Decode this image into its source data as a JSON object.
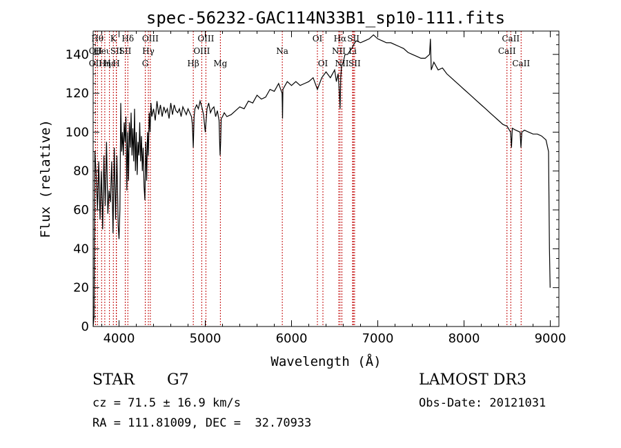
{
  "chart_data": {
    "type": "line",
    "title": "spec-56232-GAC114N33B1_sp10-111.fits",
    "xlabel": "Wavelength (Å)",
    "ylabel": "Flux (relative)",
    "xlim": [
      3700,
      9100
    ],
    "ylim": [
      0,
      152
    ],
    "xticks": [
      4000,
      5000,
      6000,
      7000,
      8000,
      9000
    ],
    "yticks": [
      0,
      20,
      40,
      60,
      80,
      100,
      120,
      140
    ],
    "series": [
      {
        "name": "flux",
        "x": [
          3700,
          3710,
          3720,
          3735,
          3750,
          3765,
          3780,
          3795,
          3810,
          3825,
          3840,
          3855,
          3870,
          3885,
          3900,
          3915,
          3930,
          3945,
          3960,
          3975,
          3990,
          4000,
          4010,
          4020,
          4030,
          4040,
          4050,
          4060,
          4070,
          4080,
          4090,
          4100,
          4110,
          4120,
          4130,
          4140,
          4150,
          4160,
          4170,
          4180,
          4190,
          4200,
          4210,
          4220,
          4230,
          4240,
          4250,
          4260,
          4270,
          4280,
          4290,
          4300,
          4310,
          4320,
          4330,
          4340,
          4350,
          4360,
          4370,
          4380,
          4400,
          4420,
          4440,
          4460,
          4480,
          4500,
          4520,
          4540,
          4560,
          4580,
          4600,
          4620,
          4640,
          4660,
          4680,
          4700,
          4720,
          4740,
          4760,
          4780,
          4800,
          4820,
          4840,
          4850,
          4861,
          4870,
          4880,
          4900,
          4920,
          4940,
          4960,
          4980,
          5000,
          5020,
          5040,
          5060,
          5080,
          5100,
          5120,
          5140,
          5160,
          5167,
          5172,
          5178,
          5185,
          5200,
          5220,
          5250,
          5300,
          5350,
          5400,
          5450,
          5500,
          5550,
          5600,
          5650,
          5700,
          5750,
          5800,
          5850,
          5890,
          5896,
          5900,
          5950,
          6000,
          6050,
          6100,
          6150,
          6200,
          6250,
          6300,
          6350,
          6400,
          6450,
          6500,
          6520,
          6540,
          6555,
          6563,
          6570,
          6580,
          6600,
          6620,
          6650,
          6680,
          6700,
          6720,
          6750,
          6800,
          6850,
          6900,
          6950,
          7000,
          7050,
          7100,
          7150,
          7200,
          7250,
          7300,
          7350,
          7400,
          7450,
          7500,
          7550,
          7600,
          7610,
          7620,
          7650,
          7700,
          7750,
          7800,
          7850,
          7900,
          7950,
          8000,
          8050,
          8100,
          8150,
          8200,
          8250,
          8300,
          8350,
          8400,
          8450,
          8500,
          8540,
          8550,
          8560,
          8600,
          8650,
          8660,
          8670,
          8700,
          8750,
          8800,
          8850,
          8900,
          8950,
          8980,
          8990,
          8998
        ],
        "values": [
          0,
          5,
          90,
          78,
          60,
          85,
          55,
          80,
          50,
          88,
          62,
          95,
          58,
          70,
          64,
          85,
          48,
          92,
          55,
          88,
          52,
          45,
          60,
          115,
          90,
          100,
          88,
          105,
          95,
          108,
          70,
          100,
          75,
          105,
          92,
          110,
          88,
          102,
          85,
          112,
          80,
          100,
          78,
          95,
          88,
          105,
          85,
          98,
          80,
          92,
          72,
          65,
          95,
          75,
          100,
          88,
          110,
          100,
          115,
          108,
          112,
          106,
          116,
          109,
          114,
          108,
          113,
          110,
          112,
          107,
          115,
          109,
          114,
          111,
          110,
          112,
          108,
          113,
          111,
          109,
          112,
          110,
          108,
          104,
          92,
          108,
          112,
          114,
          112,
          116,
          113,
          109,
          100,
          112,
          115,
          110,
          112,
          113,
          108,
          111,
          106,
          94,
          88,
          95,
          107,
          108,
          110,
          108,
          109,
          111,
          113,
          112,
          116,
          115,
          119,
          117,
          118,
          122,
          121,
          125,
          120,
          107,
          122,
          126,
          124,
          126,
          124,
          125,
          126,
          128,
          122,
          128,
          131,
          128,
          132,
          126,
          130,
          120,
          112,
          128,
          134,
          136,
          140,
          140,
          142,
          143,
          145,
          147,
          146,
          147,
          148,
          150,
          148,
          147,
          146,
          146,
          145,
          144,
          143,
          141,
          140,
          139,
          138,
          138,
          140,
          148,
          132,
          136,
          132,
          133,
          130,
          128,
          126,
          124,
          122,
          120,
          118,
          116,
          114,
          112,
          110,
          108,
          106,
          104,
          103,
          100,
          92,
          102,
          101,
          100,
          92,
          100,
          101,
          100,
          99,
          99,
          98,
          96,
          90,
          40,
          20
        ]
      }
    ],
    "line_markers": [
      {
        "wavelength": 3750,
        "row": 0,
        "label": "Hθ"
      },
      {
        "wavelength": 3727,
        "row": 1,
        "label": "OII"
      },
      {
        "wavelength": 3727,
        "row": 2,
        "label": "OII"
      },
      {
        "wavelength": 3798,
        "row": 1,
        "label": "Heι"
      },
      {
        "wavelength": 3835,
        "row": 2,
        "label": "Hη"
      },
      {
        "wavelength": 3889,
        "row": 2,
        "label": "Hε"
      },
      {
        "wavelength": 3934,
        "row": 0,
        "label": "K"
      },
      {
        "wavelength": 3968,
        "row": 2,
        "label": "H"
      },
      {
        "wavelength": 3970,
        "row": 1,
        "label": "SII"
      },
      {
        "wavelength": 4072,
        "row": 1,
        "label": "SII"
      },
      {
        "wavelength": 4102,
        "row": 0,
        "label": "Hδ"
      },
      {
        "wavelength": 4304,
        "row": 2,
        "label": "G"
      },
      {
        "wavelength": 4340,
        "row": 1,
        "label": "Hγ"
      },
      {
        "wavelength": 4363,
        "row": 0,
        "label": "OIII"
      },
      {
        "wavelength": 4861,
        "row": 2,
        "label": "Hβ"
      },
      {
        "wavelength": 4959,
        "row": 1,
        "label": "OIII"
      },
      {
        "wavelength": 5007,
        "row": 0,
        "label": "OIII"
      },
      {
        "wavelength": 5175,
        "row": 2,
        "label": "Mg"
      },
      {
        "wavelength": 5893,
        "row": 1,
        "label": "Na"
      },
      {
        "wavelength": 6300,
        "row": 0,
        "label": "OI"
      },
      {
        "wavelength": 6364,
        "row": 2,
        "label": "OI"
      },
      {
        "wavelength": 6548,
        "row": 1,
        "label": "NII"
      },
      {
        "wavelength": 6563,
        "row": 0,
        "label": "Hα"
      },
      {
        "wavelength": 6584,
        "row": 2,
        "label": "NII"
      },
      {
        "wavelength": 6708,
        "row": 1,
        "label": "Li"
      },
      {
        "wavelength": 6717,
        "row": 0,
        "label": "SII"
      },
      {
        "wavelength": 6731,
        "row": 2,
        "label": "SII"
      },
      {
        "wavelength": 8498,
        "row": 1,
        "label": "CaII"
      },
      {
        "wavelength": 8542,
        "row": 0,
        "label": "CaII"
      },
      {
        "wavelength": 8662,
        "row": 2,
        "label": "CaII"
      }
    ]
  },
  "info": {
    "object_type": "STAR",
    "subclass": "G7",
    "survey": "LAMOST DR3",
    "redshift": "cz = 71.5 ± 16.9 km/s",
    "obs_date": "Obs-Date: 20121031",
    "coordinates": "RA = 111.81009, DEC =  32.70933"
  },
  "colors": {
    "line_marker": "#c00000",
    "spectrum": "#000000"
  }
}
